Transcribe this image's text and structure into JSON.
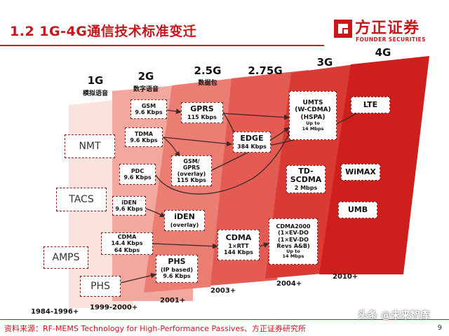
{
  "title": "1.2 1G-4G通信技术标准变迁",
  "logo": {
    "name": "方正证券",
    "subtitle": "FOUNDER SECURITIES"
  },
  "colors": {
    "brand": "#c8161d",
    "g1": "#fbe3dd",
    "g2": "#f3a89f",
    "g25": "#eb7d73",
    "g275": "#e35b52",
    "g3": "#d93a33",
    "g4": "#cf1f1c"
  },
  "generations": [
    {
      "label": "1G",
      "sub": "模拟语音"
    },
    {
      "label": "2G",
      "sub": "数字语音"
    },
    {
      "label": "2.5G",
      "sub": "数据包"
    },
    {
      "label": "2.75G",
      "sub": ""
    },
    {
      "label": "3G",
      "sub": ""
    },
    {
      "label": "4G",
      "sub": ""
    }
  ],
  "dates": [
    "1984-1996+",
    "1999-2000+",
    "2001+",
    "2003+",
    "2004+",
    "2010+"
  ],
  "nodes": {
    "nmt": {
      "name": "NMT"
    },
    "tacs": {
      "name": "TACS"
    },
    "amps": {
      "name": "AMPS"
    },
    "phs1": {
      "name": "PHS"
    },
    "gsm": {
      "name": "GSM",
      "spec": "9.6 Kbps"
    },
    "tdma": {
      "name": "TDMA",
      "spec": "9.6 Kbps"
    },
    "pdc": {
      "name": "PDC",
      "spec": "9.6 Kbps"
    },
    "iden": {
      "name": "iDEN",
      "spec": "9.6 Kbps"
    },
    "cdma": {
      "name": "CDMA",
      "spec1": "14.4 Kbps",
      "spec2": "64 Kbps"
    },
    "gprs": {
      "name": "GPRS",
      "spec": "115 Kbps"
    },
    "gsmgprs": {
      "line1": "GSM/",
      "line2": "GPRS",
      "line3": "(overlay)",
      "spec": "115 Kbps"
    },
    "iden2": {
      "name": "iDEN",
      "spec": "(overlay)"
    },
    "phs2": {
      "name": "PHS",
      "spec1": "(IP based)",
      "spec2": "9.6 Kbps"
    },
    "edge": {
      "name": "EDGE",
      "spec": "384 Kbps"
    },
    "cdma1x": {
      "name": "CDMA",
      "spec1": "1×RTT",
      "spec2": "144 Kbps"
    },
    "umts": {
      "line1": "UMTS",
      "line2": "(W-CDMA)",
      "line3": "(HSPA)",
      "note1": "Up to",
      "note2": "14 Mbps"
    },
    "tdscdma": {
      "line1": "TD-",
      "line2": "SCDMA",
      "spec": "2 Mbps"
    },
    "cdma2000": {
      "line1": "CDMA2000",
      "line2": "(1×EV-DO",
      "line3": "(1×EV-DO",
      "line4": "Revs A&B)",
      "note1": "Up to",
      "note2": "14 Mbps"
    },
    "lte": {
      "name": "LTE"
    },
    "wimax": {
      "name": "WiMAX"
    },
    "umb": {
      "name": "UMB"
    }
  },
  "source": "资料来源：RF-MEMS Technology for High-Performance Passives、方正证券研究所",
  "page_number": "9",
  "watermark": "头条 @未来智库"
}
